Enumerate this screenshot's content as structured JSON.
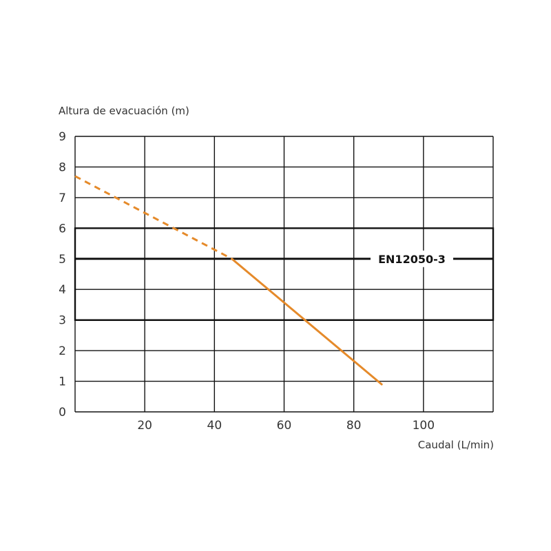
{
  "chart_data": {
    "type": "line",
    "ylabel": "Altura de evacuación (m)",
    "xlabel": "Caudal (L/min)",
    "xlim": [
      0,
      120
    ],
    "ylim": [
      0,
      9
    ],
    "x_ticks": [
      {
        "value": 20,
        "label": "20"
      },
      {
        "value": 40,
        "label": "40"
      },
      {
        "value": 60,
        "label": "60"
      },
      {
        "value": 80,
        "label": "80"
      },
      {
        "value": 100,
        "label": "100"
      }
    ],
    "y_ticks": [
      {
        "value": 0,
        "label": "0"
      },
      {
        "value": 1,
        "label": "1"
      },
      {
        "value": 2,
        "label": "2"
      },
      {
        "value": 3,
        "label": "3"
      },
      {
        "value": 4,
        "label": "4"
      },
      {
        "value": 5,
        "label": "5"
      },
      {
        "value": 6,
        "label": "6"
      },
      {
        "value": 7,
        "label": "7"
      },
      {
        "value": 8,
        "label": "8"
      },
      {
        "value": 9,
        "label": "9"
      }
    ],
    "grid": true,
    "series": [
      {
        "style": "dashed",
        "color": "#e58a2a",
        "x": [
          0,
          45
        ],
        "y": [
          7.7,
          5.0
        ]
      },
      {
        "style": "solid",
        "color": "#e58a2a",
        "x": [
          45,
          88
        ],
        "y": [
          5.0,
          0.9
        ]
      }
    ],
    "reference_band": {
      "y_from": 3,
      "y_to": 6
    },
    "reference_line": {
      "y": 5,
      "label": "EN12050-3"
    }
  }
}
